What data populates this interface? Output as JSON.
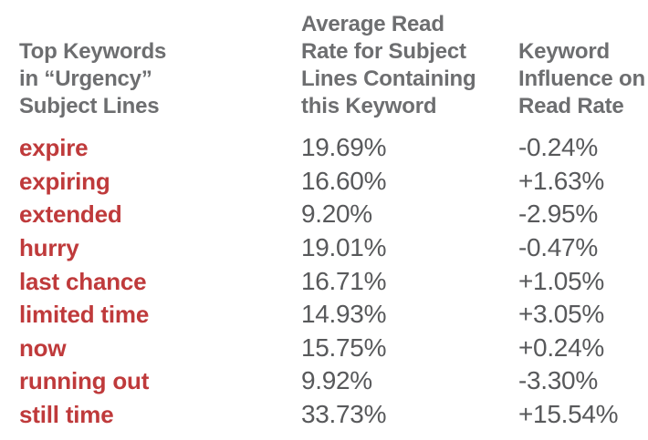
{
  "colors": {
    "keyword_red": "#bf3a3b",
    "header_gray": "#6d6e70",
    "value_gray": "#58595b",
    "background": "#ffffff"
  },
  "table": {
    "headers": {
      "col1": "Top Keywords\nin “Urgency”\nSubject Lines",
      "col2": "Average Read\nRate for Subject\nLines Containing\nthis Keyword",
      "col3": "Keyword\nInfluence on\nRead Rate"
    },
    "rows": [
      {
        "keyword": "expire",
        "read_rate": "19.69%",
        "influence": "-0.24%"
      },
      {
        "keyword": "expiring",
        "read_rate": "16.60%",
        "influence": "+1.63%"
      },
      {
        "keyword": "extended",
        "read_rate": "9.20%",
        "influence": "-2.95%"
      },
      {
        "keyword": "hurry",
        "read_rate": "19.01%",
        "influence": "-0.47%"
      },
      {
        "keyword": "last chance",
        "read_rate": "16.71%",
        "influence": "+1.05%"
      },
      {
        "keyword": "limited time",
        "read_rate": "14.93%",
        "influence": "+3.05%"
      },
      {
        "keyword": "now",
        "read_rate": "15.75%",
        "influence": "+0.24%"
      },
      {
        "keyword": "running out",
        "read_rate": "9.92%",
        "influence": "-3.30%"
      },
      {
        "keyword": "still time",
        "read_rate": "33.73%",
        "influence": "+15.54%"
      }
    ]
  },
  "chart_data": {
    "type": "table",
    "title": "Top Keywords in “Urgency” Subject Lines",
    "columns": [
      "Top Keywords in “Urgency” Subject Lines",
      "Average Read Rate for Subject Lines Containing this Keyword",
      "Keyword Influence on Read Rate"
    ],
    "keywords": [
      "expire",
      "expiring",
      "extended",
      "hurry",
      "last chance",
      "limited time",
      "now",
      "running out",
      "still time"
    ],
    "series": [
      {
        "name": "Average Read Rate (%)",
        "values": [
          19.69,
          16.6,
          9.2,
          19.01,
          16.71,
          14.93,
          15.75,
          9.92,
          33.73
        ]
      },
      {
        "name": "Keyword Influence on Read Rate (%)",
        "values": [
          -0.24,
          1.63,
          -2.95,
          -0.47,
          1.05,
          3.05,
          0.24,
          -3.3,
          15.54
        ]
      }
    ]
  }
}
